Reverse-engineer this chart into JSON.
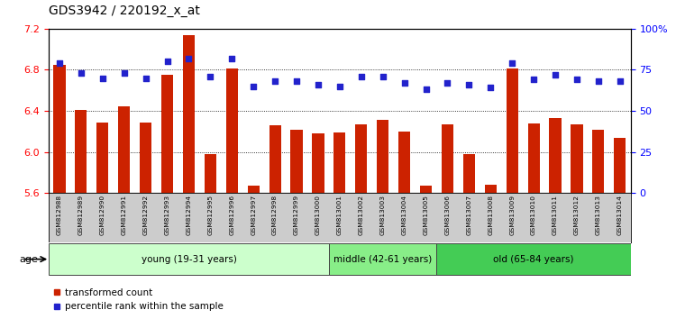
{
  "title": "GDS3942 / 220192_x_at",
  "samples": [
    "GSM812988",
    "GSM812989",
    "GSM812990",
    "GSM812991",
    "GSM812992",
    "GSM812993",
    "GSM812994",
    "GSM812995",
    "GSM812996",
    "GSM812997",
    "GSM812998",
    "GSM812999",
    "GSM813000",
    "GSM813001",
    "GSM813002",
    "GSM813003",
    "GSM813004",
    "GSM813005",
    "GSM813006",
    "GSM813007",
    "GSM813008",
    "GSM813009",
    "GSM813010",
    "GSM813011",
    "GSM813012",
    "GSM813013",
    "GSM813014"
  ],
  "bar_values": [
    6.85,
    6.41,
    6.29,
    6.44,
    6.29,
    6.75,
    7.14,
    5.98,
    6.81,
    5.67,
    6.26,
    6.22,
    6.18,
    6.19,
    6.27,
    6.31,
    6.2,
    5.67,
    6.27,
    5.98,
    5.68,
    6.81,
    6.28,
    6.33,
    6.27,
    6.22,
    6.14
  ],
  "percentile_values": [
    79,
    73,
    70,
    73,
    70,
    80,
    82,
    71,
    82,
    65,
    68,
    68,
    66,
    65,
    71,
    71,
    67,
    63,
    67,
    66,
    64,
    79,
    69,
    72,
    69,
    68,
    68
  ],
  "bar_color": "#cc2200",
  "dot_color": "#2222cc",
  "ylim_left": [
    5.6,
    7.2
  ],
  "ylim_right": [
    0,
    100
  ],
  "yticks_left": [
    5.6,
    6.0,
    6.4,
    6.8,
    7.2
  ],
  "yticks_right": [
    0,
    25,
    50,
    75,
    100
  ],
  "ytick_labels_right": [
    "0",
    "25",
    "50",
    "75",
    "100%"
  ],
  "groups": [
    {
      "label": "young (19-31 years)",
      "start": 0,
      "end": 13,
      "color": "#ccffcc"
    },
    {
      "label": "middle (42-61 years)",
      "start": 13,
      "end": 18,
      "color": "#88ee88"
    },
    {
      "label": "old (65-84 years)",
      "start": 18,
      "end": 27,
      "color": "#44cc55"
    }
  ],
  "age_label": "age",
  "legend_bar_label": "transformed count",
  "legend_dot_label": "percentile rank within the sample",
  "title_fontsize": 10,
  "label_fontsize": 5.5,
  "tick_fontsize": 8
}
